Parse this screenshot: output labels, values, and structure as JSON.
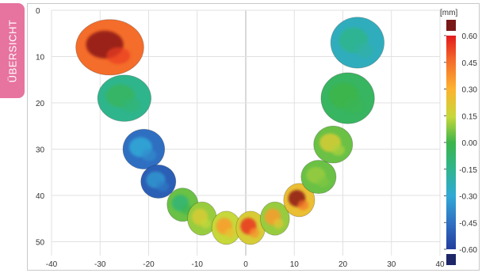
{
  "side_tab": {
    "label": "ÜBERSICHT"
  },
  "chart_data": {
    "type": "heatmap",
    "title": "",
    "xlabel": "",
    "ylabel": "",
    "x_ticks": [
      -40,
      -30,
      -20,
      -10,
      0,
      10,
      20,
      30,
      40
    ],
    "y_ticks": [
      0,
      10,
      20,
      30,
      40,
      50
    ],
    "xlim": [
      -40,
      40
    ],
    "ylim": [
      0,
      53
    ],
    "y_inverted": true,
    "grid": true,
    "colorbar": {
      "unit": "[mm]",
      "ticks": [
        "0.60",
        "0.45",
        "0.30",
        "0.15",
        "0.00",
        "-0.15",
        "-0.30",
        "-0.45",
        "-0.60"
      ],
      "range": [
        -0.6,
        0.6
      ],
      "over_color": "#7a1818",
      "under_color": "#1c2668"
    },
    "teeth": [
      {
        "name": "upper-right-molar",
        "cx": -28,
        "cy": 8,
        "rx": 7,
        "ry": 6,
        "deviation": 0.45,
        "hot": 0.62
      },
      {
        "name": "second-molar",
        "cx": -25,
        "cy": 19,
        "rx": 5.5,
        "ry": 5,
        "deviation": -0.15,
        "hot": -0.05
      },
      {
        "name": "premolar-1",
        "cx": -21,
        "cy": 30,
        "rx": 4.3,
        "ry": 4.3,
        "deviation": -0.45,
        "hot": -0.3
      },
      {
        "name": "premolar-2",
        "cx": -18,
        "cy": 37,
        "rx": 3.6,
        "ry": 3.6,
        "deviation": -0.5,
        "hot": -0.35
      },
      {
        "name": "canine-r",
        "cx": -13,
        "cy": 42,
        "rx": 3.2,
        "ry": 3.6,
        "deviation": 0.05,
        "hot": -0.1
      },
      {
        "name": "lateral-r",
        "cx": -9,
        "cy": 45,
        "rx": 3.0,
        "ry": 3.6,
        "deviation": 0.1,
        "hot": 0.2
      },
      {
        "name": "central-r",
        "cx": -4,
        "cy": 47,
        "rx": 3.0,
        "ry": 3.6,
        "deviation": 0.15,
        "hot": 0.35
      },
      {
        "name": "central-l",
        "cx": 1,
        "cy": 47,
        "rx": 3.0,
        "ry": 3.6,
        "deviation": 0.2,
        "hot": 0.55
      },
      {
        "name": "lateral-l",
        "cx": 6,
        "cy": 45,
        "rx": 3.0,
        "ry": 3.6,
        "deviation": 0.1,
        "hot": 0.35
      },
      {
        "name": "canine-l",
        "cx": 11,
        "cy": 41,
        "rx": 3.2,
        "ry": 3.6,
        "deviation": 0.25,
        "hot": 0.62
      },
      {
        "name": "premolar-l1",
        "cx": 15,
        "cy": 36,
        "rx": 3.6,
        "ry": 3.6,
        "deviation": 0.05,
        "hot": 0.1
      },
      {
        "name": "premolar-l2",
        "cx": 18,
        "cy": 29,
        "rx": 4.0,
        "ry": 4.0,
        "deviation": 0.05,
        "hot": 0.2
      },
      {
        "name": "second-molar-l",
        "cx": 21,
        "cy": 19,
        "rx": 5.5,
        "ry": 5.5,
        "deviation": -0.05,
        "hot": 0.0
      },
      {
        "name": "upper-left-molar",
        "cx": 23,
        "cy": 7,
        "rx": 5.5,
        "ry": 5.5,
        "deviation": -0.25,
        "hot": -0.15
      }
    ]
  }
}
